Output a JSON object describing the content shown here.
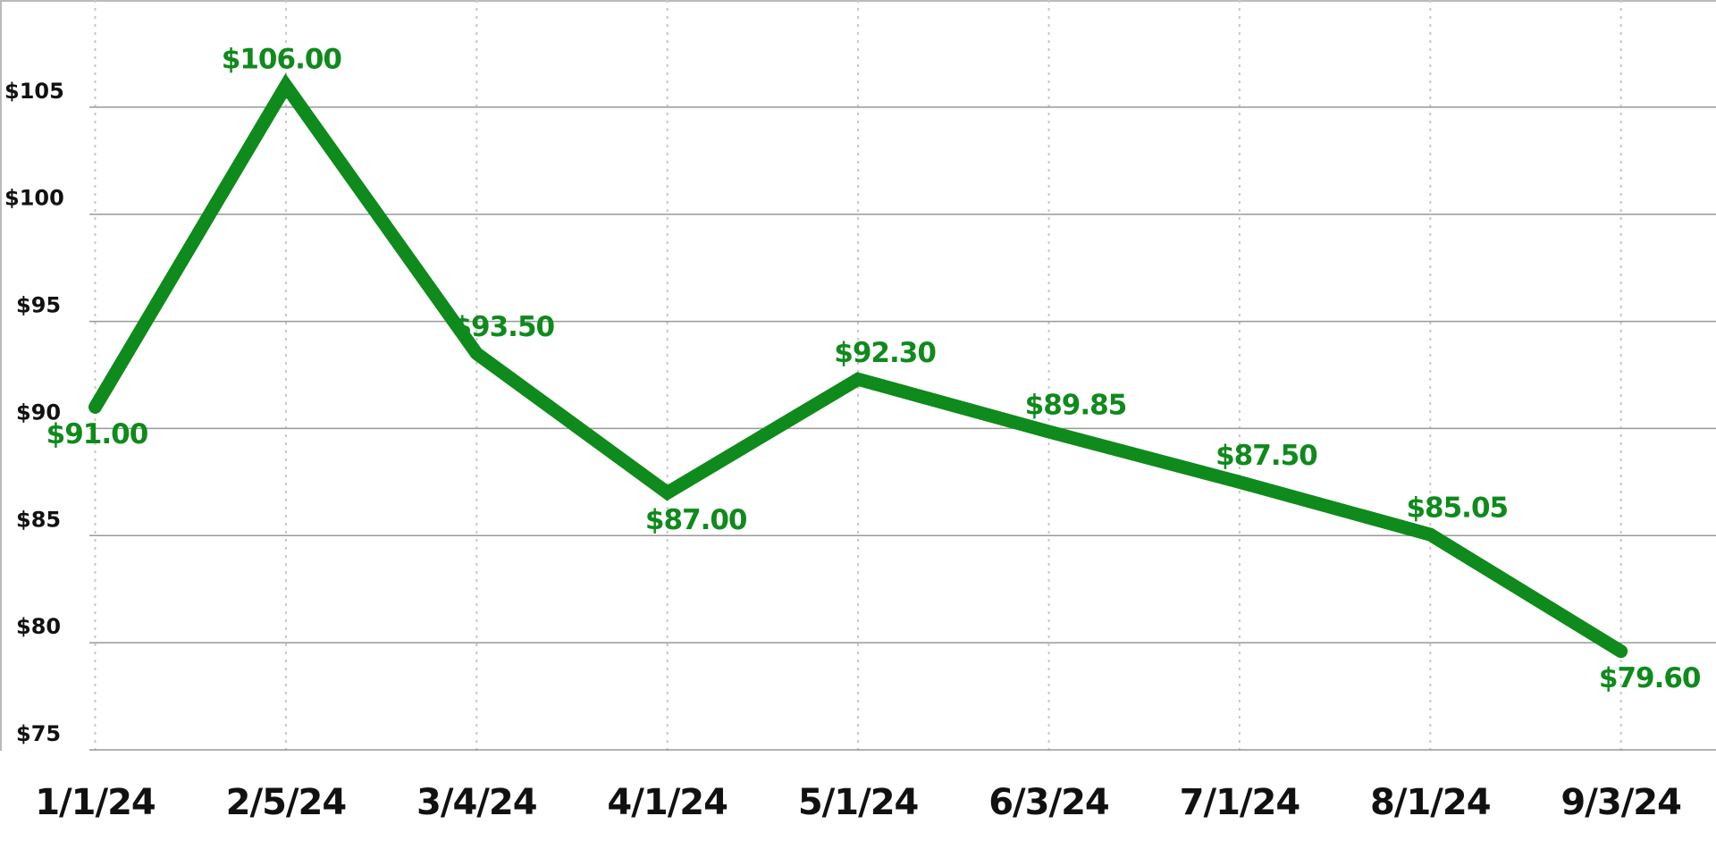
{
  "chart_data": {
    "type": "line",
    "categories": [
      "1/1/24",
      "2/5/24",
      "3/4/24",
      "4/1/24",
      "5/1/24",
      "6/3/24",
      "7/1/24",
      "8/1/24",
      "9/3/24"
    ],
    "values": [
      91.0,
      106.0,
      93.5,
      87.0,
      92.3,
      89.85,
      87.5,
      85.05,
      79.6
    ],
    "value_labels": [
      "$91.00",
      "$106.00",
      "$93.50",
      "$87.00",
      "$92.30",
      "$89.85",
      "$87.50",
      "$85.05",
      "$79.60"
    ],
    "color": "#0f8a1c",
    "ylim": [
      75,
      110
    ],
    "yticks": [
      {
        "value": 75,
        "label": "$75"
      },
      {
        "value": 80,
        "label": "$80"
      },
      {
        "value": 85,
        "label": "$85"
      },
      {
        "value": 90,
        "label": "$90"
      },
      {
        "value": 95,
        "label": "$95"
      },
      {
        "value": 100,
        "label": "$100"
      },
      {
        "value": 105,
        "label": "$105"
      }
    ],
    "grid": true
  }
}
